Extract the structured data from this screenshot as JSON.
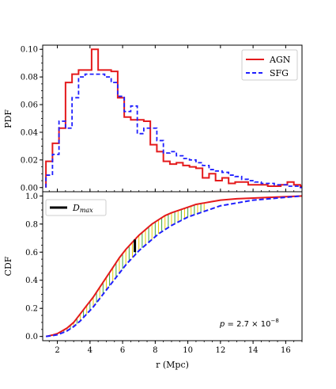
{
  "chart_data": [
    {
      "type": "step",
      "title": "",
      "xlabel": "",
      "ylabel": "PDF",
      "xlim": [
        1.1,
        17
      ],
      "ylim": [
        -0.003,
        0.103
      ],
      "yticks": [
        0.0,
        0.02,
        0.04,
        0.06,
        0.08,
        0.1
      ],
      "ytick_labels": [
        "0.00",
        "0.02",
        "0.04",
        "0.06",
        "0.08",
        "0.10"
      ],
      "legend_position": "top-right",
      "bin_edges": [
        1.3,
        1.7,
        2.1,
        2.5,
        2.9,
        3.3,
        3.7,
        4.1,
        4.5,
        4.9,
        5.3,
        5.7,
        6.1,
        6.5,
        6.9,
        7.3,
        7.7,
        8.1,
        8.5,
        8.9,
        9.3,
        9.7,
        10.1,
        10.5,
        10.9,
        11.3,
        11.7,
        12.1,
        12.5,
        12.9,
        13.3,
        13.7,
        14.1,
        14.5,
        14.9,
        15.3,
        15.7,
        16.1,
        16.5,
        16.9,
        17.0
      ],
      "series": [
        {
          "name": "AGN",
          "color": "#e41a1c",
          "linestyle": "solid",
          "values": [
            0.019,
            0.032,
            0.043,
            0.076,
            0.082,
            0.085,
            0.085,
            0.1,
            0.085,
            0.085,
            0.084,
            0.065,
            0.051,
            0.049,
            0.049,
            0.048,
            0.031,
            0.026,
            0.019,
            0.017,
            0.018,
            0.016,
            0.015,
            0.014,
            0.007,
            0.01,
            0.005,
            0.007,
            0.003,
            0.004,
            0.004,
            0.002,
            0.002,
            0.002,
            0.001,
            0.001,
            0.002,
            0.004,
            0.002,
            0.001
          ]
        },
        {
          "name": "SFG",
          "color": "#1f1fff",
          "linestyle": "dashed",
          "values": [
            0.009,
            0.024,
            0.048,
            0.043,
            0.065,
            0.08,
            0.082,
            0.082,
            0.082,
            0.08,
            0.076,
            0.066,
            0.055,
            0.059,
            0.039,
            0.043,
            0.043,
            0.034,
            0.025,
            0.026,
            0.023,
            0.021,
            0.02,
            0.018,
            0.016,
            0.013,
            0.012,
            0.011,
            0.009,
            0.008,
            0.006,
            0.005,
            0.004,
            0.003,
            0.003,
            0.002,
            0.002,
            0.001,
            0.001,
            0.0
          ]
        }
      ]
    },
    {
      "type": "line",
      "title": "",
      "xlabel": "r (Mpc)",
      "ylabel": "CDF",
      "xlim": [
        1.1,
        17
      ],
      "ylim": [
        -0.03,
        1.03
      ],
      "xticks": [
        2,
        4,
        6,
        8,
        10,
        12,
        14,
        16
      ],
      "xtick_labels": [
        "2",
        "4",
        "6",
        "8",
        "10",
        "12",
        "14",
        "16"
      ],
      "yticks": [
        0.0,
        0.2,
        0.4,
        0.6,
        0.8,
        1.0
      ],
      "ytick_labels": [
        "0.0",
        "0.2",
        "0.4",
        "0.6",
        "0.8",
        "1.0"
      ],
      "legend_position": "top-left",
      "legend_label": "D_max",
      "dmax": {
        "x": 6.75,
        "y_low": 0.6,
        "y_high": 0.69
      },
      "annotation": "p = 2.7 × 10^-8",
      "series": [
        {
          "name": "AGN",
          "color": "#e41a1c",
          "linestyle": "solid",
          "x": [
            1.3,
            1.5,
            1.7,
            2.0,
            2.3,
            2.6,
            3.0,
            3.4,
            3.8,
            4.2,
            4.6,
            5.0,
            5.4,
            5.8,
            6.2,
            6.6,
            7.0,
            7.4,
            7.8,
            8.2,
            8.6,
            9.0,
            9.5,
            10.0,
            10.5,
            11.0,
            11.5,
            12.0,
            13.0,
            14.0,
            15.0,
            16.0,
            17.0
          ],
          "y": [
            0.0,
            0.005,
            0.01,
            0.02,
            0.04,
            0.06,
            0.1,
            0.16,
            0.22,
            0.28,
            0.35,
            0.42,
            0.49,
            0.56,
            0.62,
            0.67,
            0.72,
            0.76,
            0.8,
            0.83,
            0.86,
            0.88,
            0.9,
            0.92,
            0.94,
            0.95,
            0.96,
            0.97,
            0.98,
            0.985,
            0.99,
            0.995,
            1.0
          ]
        },
        {
          "name": "SFG",
          "color": "#1f1fff",
          "linestyle": "dashed",
          "x": [
            1.3,
            1.5,
            1.7,
            2.0,
            2.3,
            2.6,
            3.0,
            3.4,
            3.8,
            4.2,
            4.6,
            5.0,
            5.4,
            5.8,
            6.2,
            6.6,
            7.0,
            7.4,
            7.8,
            8.2,
            8.6,
            9.0,
            9.5,
            10.0,
            10.5,
            11.0,
            11.5,
            12.0,
            13.0,
            14.0,
            15.0,
            16.0,
            17.0
          ],
          "y": [
            0.0,
            0.003,
            0.006,
            0.012,
            0.025,
            0.04,
            0.07,
            0.11,
            0.16,
            0.21,
            0.27,
            0.33,
            0.39,
            0.45,
            0.51,
            0.56,
            0.61,
            0.65,
            0.69,
            0.73,
            0.76,
            0.79,
            0.82,
            0.85,
            0.87,
            0.89,
            0.91,
            0.93,
            0.95,
            0.97,
            0.98,
            0.99,
            1.0
          ]
        }
      ]
    }
  ]
}
